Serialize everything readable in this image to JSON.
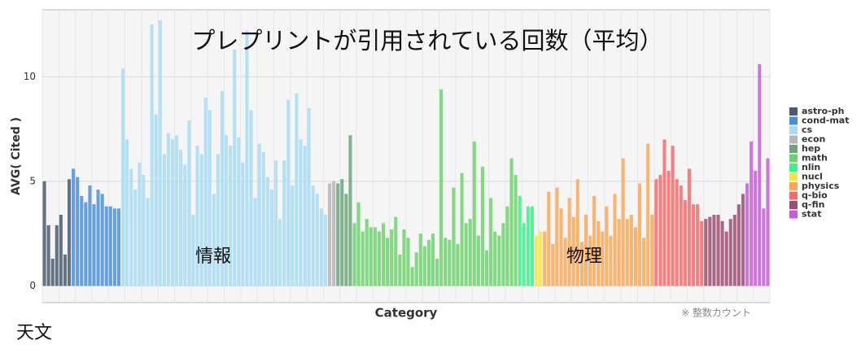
{
  "chart_data": {
    "type": "bar",
    "title": "プレプリントが引用されている回数（平均）",
    "x_label": "Category",
    "y_label": "AVG( Cited )",
    "note": "※ 整数カウント",
    "annotations": [
      "情報",
      "物理",
      "天文"
    ],
    "ylim": [
      -0.8,
      13.2
    ],
    "yticks": [
      0,
      5,
      10
    ],
    "grid": true,
    "legend": "right",
    "series": [
      {
        "name": "astro-ph",
        "color": "#4a5a70",
        "values": [
          5.0,
          2.9,
          1.3,
          2.9,
          3.4,
          1.5,
          5.1
        ]
      },
      {
        "name": "cond-mat",
        "color": "#4a90d9",
        "values": [
          5.6,
          5.2,
          4.3,
          4.0,
          4.8,
          3.9,
          4.6,
          4.4,
          3.8,
          3.8,
          3.7,
          3.7
        ]
      },
      {
        "name": "cs",
        "color": "#a8dcf5",
        "values": [
          10.4,
          7.0,
          5.6,
          4.6,
          5.9,
          5.3,
          4.2,
          12.5,
          8.2,
          12.7,
          6.3,
          7.3,
          7.0,
          7.2,
          6.5,
          5.8,
          7.9,
          3.4,
          6.7,
          6.3,
          9.0,
          8.4,
          4.4,
          6.3,
          9.3,
          7.2,
          6.7,
          11.3,
          7.1,
          5.9,
          12.2,
          8.4,
          4.2,
          6.8,
          6.4,
          5.2,
          4.6,
          6.0,
          3.2,
          6.0,
          8.9,
          4.8,
          9.2,
          7.0,
          6.7,
          8.5,
          4.8,
          4.4,
          3.7,
          3.4
        ]
      },
      {
        "name": "econ",
        "color": "#b5b5b5",
        "values": [
          4.9,
          5.0
        ]
      },
      {
        "name": "hep",
        "color": "#6aa67a",
        "values": [
          4.9,
          5.1,
          4.4,
          7.2
        ]
      },
      {
        "name": "math",
        "color": "#6cd36c",
        "values": [
          3.0,
          4.0,
          2.6,
          3.2,
          2.8,
          2.8,
          2.6,
          3.0,
          2.3,
          2.7,
          3.3,
          1.5,
          2.7,
          2.3,
          0.9,
          1.6,
          2.5,
          1.9,
          2.2,
          2.5,
          1.3,
          9.4,
          2.3,
          2.2,
          4.7,
          2.0,
          5.4,
          3.0,
          3.2,
          6.9,
          2.4,
          5.7,
          1.7,
          4.2,
          2.6,
          2.4,
          3.0,
          3.8,
          6.1,
          5.3
        ]
      },
      {
        "name": "nlin",
        "color": "#3ef08a",
        "values": [
          4.3,
          3.0,
          3.8,
          3.8
        ]
      },
      {
        "name": "nucl",
        "color": "#f5e642",
        "values": [
          2.4,
          2.6
        ]
      },
      {
        "name": "physics",
        "color": "#f9a857",
        "values": [
          2.6,
          4.5,
          2.0,
          4.7,
          3.7,
          2.3,
          4.2,
          3.3,
          5.1,
          2.1,
          3.4,
          2.4,
          4.3,
          3.1,
          2.6,
          3.8,
          2.4,
          4.4,
          3.2,
          6.1,
          3.2,
          3.4,
          2.8,
          4.9,
          2.3,
          6.8,
          3.4
        ]
      },
      {
        "name": "q-bio",
        "color": "#f66b6b",
        "values": [
          5.1,
          5.3,
          7.0,
          5.5,
          6.7,
          5.1,
          4.8,
          4.1,
          5.6,
          3.9,
          3.9,
          3.1
        ]
      },
      {
        "name": "q-fin",
        "color": "#9c4d72",
        "values": [
          3.2,
          3.3,
          3.4,
          3.4,
          3.1,
          2.6,
          3.2,
          3.4,
          3.9,
          4.4
        ]
      },
      {
        "name": "stat",
        "color": "#c45ed9",
        "values": [
          4.9,
          6.9,
          5.5,
          10.6,
          3.7,
          6.1
        ]
      }
    ]
  }
}
